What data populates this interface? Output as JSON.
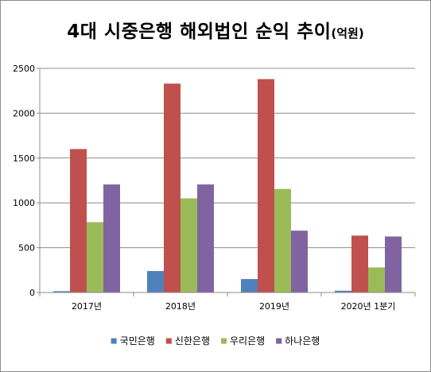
{
  "chart_data": {
    "type": "bar",
    "title": "4대 시중은행 해외법인 순익 추이",
    "title_unit": "(억원)",
    "xlabel": "",
    "ylabel": "",
    "categories": [
      "2017년",
      "2018년",
      "2019년",
      "2020년 1분기"
    ],
    "series": [
      {
        "name": "국민은행",
        "color": "#4f81bd",
        "values": [
          15,
          240,
          150,
          20
        ]
      },
      {
        "name": "신한은행",
        "color": "#c0504d",
        "values": [
          1600,
          2330,
          2380,
          635
        ]
      },
      {
        "name": "우리은행",
        "color": "#9bbb59",
        "values": [
          785,
          1050,
          1155,
          280
        ]
      },
      {
        "name": "하나은행",
        "color": "#8064a2",
        "values": [
          1205,
          1205,
          690,
          625
        ]
      }
    ],
    "ylim": [
      0,
      2500
    ],
    "yticks": [
      "0",
      "500",
      "1000",
      "1500",
      "2000",
      "2500"
    ],
    "grid": true,
    "legend_position": "bottom"
  }
}
